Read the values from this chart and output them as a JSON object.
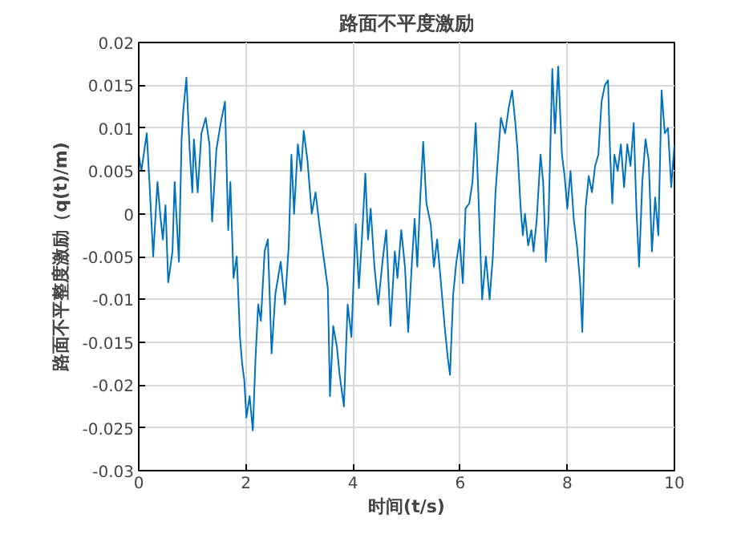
{
  "chart_data": {
    "type": "line",
    "title": "路面不平度激励",
    "xlabel": "时间(t/s)",
    "ylabel": "路面不平整度激励（q(t)/m)",
    "x": [
      0,
      0.05,
      0.15,
      0.2,
      0.27,
      0.35,
      0.4,
      0.45,
      0.5,
      0.55,
      0.63,
      0.67,
      0.75,
      0.8,
      0.83,
      0.89,
      0.95,
      1.0,
      1.03,
      1.1,
      1.17,
      1.25,
      1.32,
      1.37,
      1.45,
      1.53,
      1.61,
      1.67,
      1.71,
      1.77,
      1.83,
      1.89,
      1.93,
      1.97,
      2.01,
      2.07,
      2.13,
      2.18,
      2.23,
      2.28,
      2.35,
      2.41,
      2.48,
      2.55,
      2.65,
      2.73,
      2.8,
      2.85,
      2.9,
      2.97,
      3.03,
      3.08,
      3.15,
      3.23,
      3.3,
      3.37,
      3.45,
      3.53,
      3.57,
      3.63,
      3.7,
      3.75,
      3.83,
      3.9,
      3.97,
      4.05,
      4.11,
      4.17,
      4.23,
      4.28,
      4.33,
      4.4,
      4.47,
      4.55,
      4.62,
      4.7,
      4.78,
      4.83,
      4.9,
      4.97,
      5.03,
      5.1,
      5.15,
      5.2,
      5.25,
      5.31,
      5.37,
      5.45,
      5.51,
      5.57,
      5.65,
      5.71,
      5.77,
      5.81,
      5.87,
      5.93,
      5.99,
      6.05,
      6.1,
      6.17,
      6.23,
      6.29,
      6.35,
      6.41,
      6.48,
      6.55,
      6.61,
      6.66,
      6.76,
      6.84,
      6.91,
      6.97,
      7.03,
      7.07,
      7.13,
      7.17,
      7.21,
      7.27,
      7.33,
      7.37,
      7.43,
      7.5,
      7.55,
      7.6,
      7.65,
      7.72,
      7.77,
      7.83,
      7.9,
      7.95,
      8.0,
      8.06,
      8.12,
      8.18,
      8.24,
      8.28,
      8.34,
      8.4,
      8.46,
      8.52,
      8.58,
      8.64,
      8.7,
      8.76,
      8.8,
      8.84,
      8.88,
      8.94,
      9.0,
      9.06,
      9.12,
      9.18,
      9.24,
      9.29,
      9.34,
      9.4,
      9.46,
      9.52,
      9.58,
      9.64,
      9.7,
      9.76,
      9.82,
      9.88,
      9.94,
      10.0
    ],
    "series": [
      {
        "color": "#0072bd",
        "values": [
          0.0069,
          0.005,
          0.0094,
          0.0037,
          -0.005,
          0.0037,
          0,
          -0.003,
          0.001,
          -0.008,
          -0.0044,
          0.0037,
          -0.0056,
          0.0087,
          0.0119,
          0.0159,
          0.0075,
          0.0025,
          0.0087,
          0.0025,
          0.0094,
          0.0112,
          0.0081,
          -0.0009,
          0.0075,
          0.0106,
          0.0131,
          -0.0019,
          0.0037,
          -0.0075,
          -0.005,
          -0.0144,
          -0.0175,
          -0.0194,
          -0.0238,
          -0.0213,
          -0.0253,
          -0.0169,
          -0.0106,
          -0.0125,
          -0.0044,
          -0.003,
          -0.0163,
          -0.0094,
          -0.0056,
          -0.0106,
          -0.0037,
          0.0069,
          0,
          0.0081,
          0.005,
          0.0097,
          0.0062,
          0,
          0.0025,
          -0.0012,
          -0.005,
          -0.0087,
          -0.0213,
          -0.0131,
          -0.0156,
          -0.0188,
          -0.0225,
          -0.0106,
          -0.0144,
          -0.0012,
          -0.0087,
          -0.0025,
          0.0047,
          -0.003,
          0.0006,
          -0.0062,
          -0.0106,
          -0.0056,
          -0.0019,
          -0.0131,
          -0.0044,
          -0.0075,
          -0.0019,
          -0.0062,
          -0.0138,
          -0.0056,
          -0.0006,
          -0.0062,
          0.0012,
          0.0084,
          0.0012,
          -0.0012,
          -0.0062,
          -0.003,
          -0.0087,
          -0.0131,
          -0.0169,
          -0.0188,
          -0.0094,
          -0.0056,
          -0.003,
          -0.0081,
          0.0006,
          0.0012,
          0.0037,
          0.0106,
          0.0006,
          -0.01,
          -0.005,
          -0.01,
          -0.005,
          0.0025,
          0.0112,
          0.0094,
          0.0125,
          0.0144,
          0.0106,
          0.0075,
          0.0006,
          -0.0025,
          0,
          -0.0037,
          -0.0019,
          -0.0044,
          -0.0006,
          0.0069,
          0.0037,
          -0.0056,
          -0.0006,
          0.0169,
          0.0094,
          0.0172,
          0.0069,
          0.0044,
          0.0006,
          0.005,
          -0.0006,
          -0.0037,
          -0.0081,
          -0.0138,
          0.0006,
          0.0044,
          0.0025,
          0.0056,
          0.0069,
          0.0131,
          0.015,
          0.0156,
          0.0069,
          0.0012,
          0.0069,
          0.005,
          0.0081,
          0.0031,
          0.0081,
          0.0056,
          0.0106,
          0.0006,
          -0.0062,
          0.0037,
          0.0087,
          0.0062,
          -0.0044,
          0.0019,
          -0.0025,
          0.0144,
          0.0094,
          0.01,
          0.0031,
          0.0081
        ]
      }
    ],
    "xlim": [
      0,
      10
    ],
    "xticks": [
      0,
      2,
      4,
      6,
      8,
      10
    ],
    "ylim": [
      -0.03,
      0.02
    ],
    "yticks": [
      -0.03,
      -0.025,
      -0.02,
      -0.015,
      -0.01,
      -0.005,
      0,
      0.005,
      0.01,
      0.015,
      0.02
    ],
    "grid": true,
    "marker": "none",
    "line_style": "solid"
  }
}
